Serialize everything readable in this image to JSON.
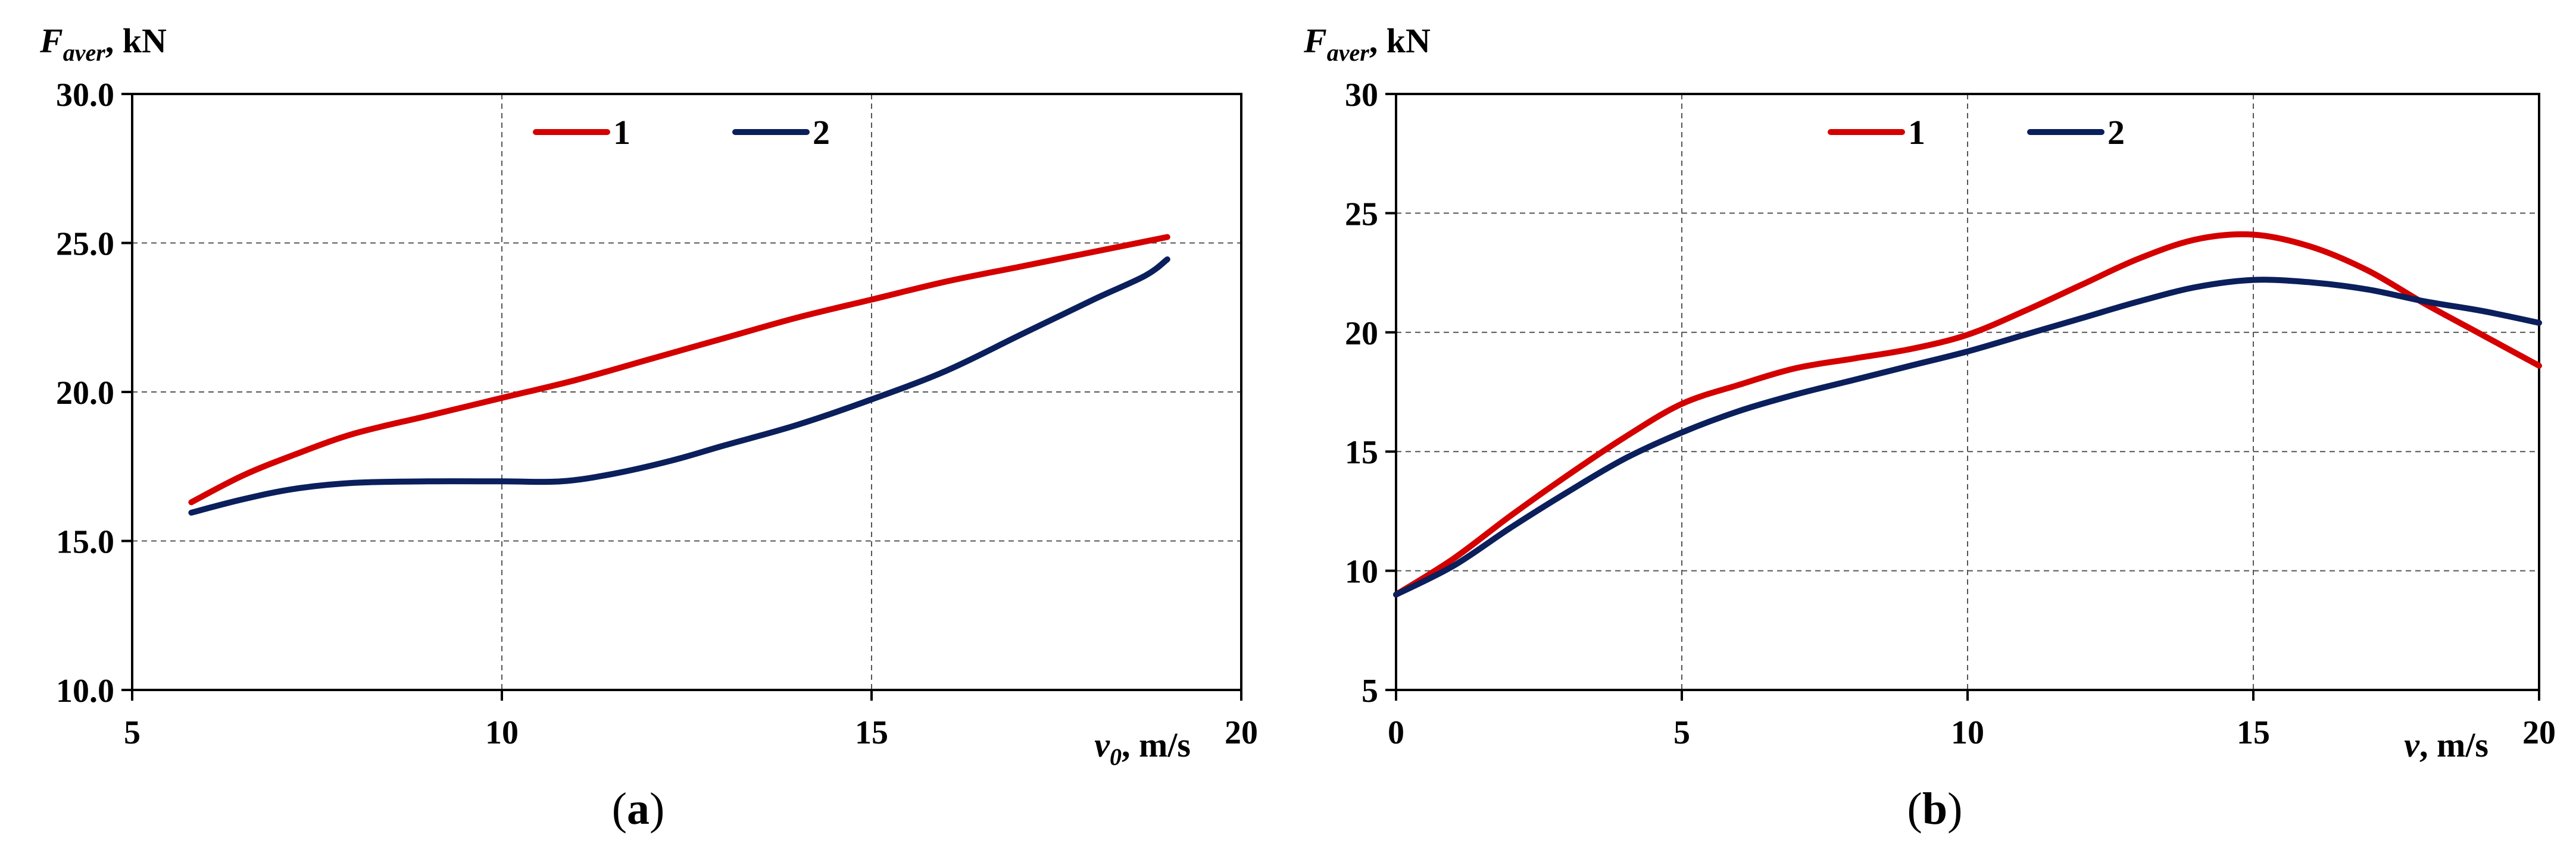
{
  "chart_data": [
    {
      "type": "line",
      "panel": "a",
      "caption": "a",
      "ylabel": {
        "symbol": "F",
        "subscript": "aver",
        "unit": ", kN"
      },
      "xlabel": {
        "symbol": "v",
        "subscript": "0",
        "unit": ", m/s"
      },
      "xlim": [
        5,
        20
      ],
      "ylim": [
        10,
        30
      ],
      "xticks": [
        5,
        10,
        15,
        20
      ],
      "yticks": [
        10,
        15,
        20,
        25,
        30
      ],
      "ytick_labels": [
        "10.0",
        "15.0",
        "20.0",
        "25.0",
        "30.0"
      ],
      "xtick_labels": [
        "5",
        "10",
        "15",
        "20"
      ],
      "grid": true,
      "legend": "top-center",
      "series": [
        {
          "name": "1",
          "color": "#d40000",
          "x": [
            5.8,
            6.5,
            7.2,
            8.0,
            9.0,
            10.0,
            11.0,
            12.0,
            13.0,
            14.0,
            15.0,
            16.0,
            17.0,
            18.0,
            19.0
          ],
          "y": [
            16.3,
            17.2,
            17.9,
            18.6,
            19.2,
            19.8,
            20.4,
            21.1,
            21.8,
            22.5,
            23.1,
            23.7,
            24.2,
            24.7,
            25.2
          ]
        },
        {
          "name": "2",
          "color": "#0a1f5c",
          "x": [
            5.8,
            6.5,
            7.2,
            8.0,
            9.0,
            10.0,
            10.8,
            11.5,
            12.3,
            13.0,
            14.0,
            15.0,
            16.0,
            17.0,
            18.0,
            18.7,
            19.0
          ],
          "y": [
            15.95,
            16.4,
            16.75,
            16.95,
            17.0,
            17.0,
            17.0,
            17.25,
            17.7,
            18.2,
            18.9,
            19.75,
            20.7,
            21.9,
            23.1,
            23.9,
            24.45
          ]
        }
      ]
    },
    {
      "type": "line",
      "panel": "b",
      "caption": "b",
      "ylabel": {
        "symbol": "F",
        "subscript": "aver",
        "unit": ", kN"
      },
      "xlabel": {
        "symbol": "v",
        "subscript": "",
        "unit": ", m/s"
      },
      "xlim": [
        0,
        20
      ],
      "ylim": [
        5,
        30
      ],
      "xticks": [
        0,
        5,
        10,
        15,
        20
      ],
      "yticks": [
        5,
        10,
        15,
        20,
        25,
        30
      ],
      "ytick_labels": [
        "5",
        "10",
        "15",
        "20",
        "25",
        "30"
      ],
      "xtick_labels": [
        "0",
        "5",
        "10",
        "15",
        "20"
      ],
      "grid": true,
      "legend": "top-center",
      "series": [
        {
          "name": "1",
          "color": "#d40000",
          "x": [
            0,
            1,
            2,
            3,
            4,
            5,
            6,
            7,
            8,
            9,
            10,
            11,
            12,
            13,
            14,
            15,
            16,
            17,
            18,
            19,
            20
          ],
          "y": [
            9.0,
            10.5,
            12.3,
            14.0,
            15.6,
            17.0,
            17.8,
            18.5,
            18.9,
            19.3,
            19.9,
            20.9,
            22.0,
            23.1,
            23.9,
            24.1,
            23.6,
            22.6,
            21.2,
            19.9,
            18.6
          ]
        },
        {
          "name": "2",
          "color": "#0a1f5c",
          "x": [
            0,
            1,
            2,
            3,
            4,
            5,
            6,
            7,
            8,
            9,
            10,
            11,
            12,
            13,
            14,
            15,
            16,
            17,
            18,
            19,
            20
          ],
          "y": [
            9.0,
            10.2,
            11.8,
            13.3,
            14.7,
            15.8,
            16.7,
            17.4,
            18.0,
            18.6,
            19.2,
            19.9,
            20.6,
            21.3,
            21.9,
            22.2,
            22.1,
            21.8,
            21.3,
            20.9,
            20.4
          ]
        }
      ]
    }
  ]
}
